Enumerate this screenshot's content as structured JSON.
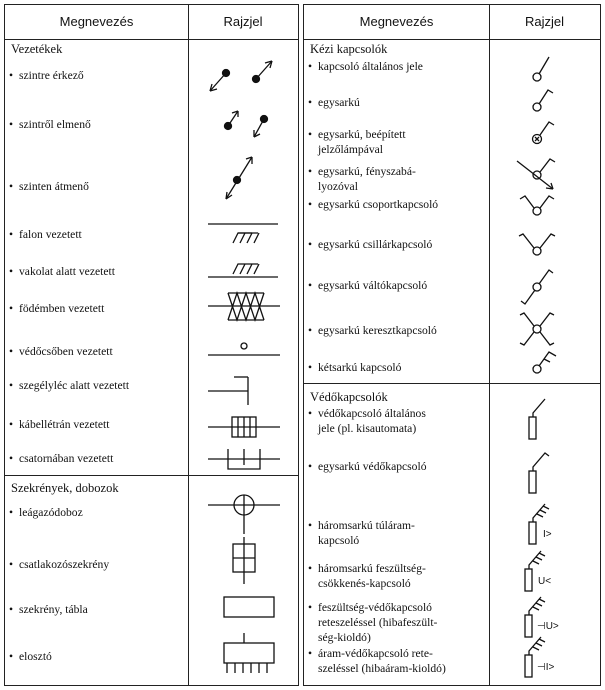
{
  "left": {
    "header": {
      "name": "Megnevezés",
      "symbol": "Rajzjel"
    },
    "sections": [
      {
        "title": "Vezetékek",
        "items": [
          {
            "label": "szintre érkező"
          },
          {
            "label": "szintről elmenő"
          },
          {
            "label": "szinten átmenő"
          },
          {
            "label": "falon vezetett"
          },
          {
            "label": "vakolat alatt vezetett"
          },
          {
            "label": "födémben vezetett"
          },
          {
            "label": "védőcsőben vezetett"
          },
          {
            "label": "szegélyléc alatt vezetett"
          },
          {
            "label": "kábellétrán vezetett"
          },
          {
            "label": "csatornában vezetett"
          }
        ]
      },
      {
        "title": "Szekrények, dobozok",
        "items": [
          {
            "label": "leágazódoboz"
          },
          {
            "label": "csatlakozószekrény"
          },
          {
            "label": "szekrény, tábla"
          },
          {
            "label": "elosztó"
          }
        ]
      }
    ]
  },
  "right": {
    "header": {
      "name": "Megnevezés",
      "symbol": "Rajzjel"
    },
    "sections": [
      {
        "title": "Kézi kapcsolók",
        "items": [
          {
            "label": "kapcsoló általános jele"
          },
          {
            "label": "egysarkú"
          },
          {
            "label": "egysarkú, beépített",
            "label2": "jelzőlámpával"
          },
          {
            "label": "egysarkú,  fényszabá-",
            "label2": "lyozóval"
          },
          {
            "label": "egysarkú csoportkapcsoló"
          },
          {
            "label": "egysarkú csillárkapcsoló"
          },
          {
            "label": "egysarkú váltókapcsoló"
          },
          {
            "label": "egysarkú keresztkapcsoló"
          },
          {
            "label": "kétsarkú kapcsoló"
          }
        ]
      },
      {
        "title": "Védőkapcsolók",
        "items": [
          {
            "label": "védőkapcsoló általános",
            "label2": "jele (pl. kisautomata)"
          },
          {
            "label": "egysarkú védőkapcsoló"
          },
          {
            "label": "háromsarkú túláram-",
            "label2": "kapcsoló",
            "symtext": "I>"
          },
          {
            "label": "háromsarkú feszültség-",
            "label2": "csökkenés-kapcsoló",
            "symtext": "U<"
          },
          {
            "label": "feszültség-védőkapcsoló",
            "label2": "reteszeléssel (hibafeszült-",
            "label3": "ség-kioldó)",
            "symtext": "⊣U>"
          },
          {
            "label": "áram-védőkapcsoló rete-",
            "label2": "szeléssel (hibaáram-kioldó)",
            "symtext": "⊣I>"
          }
        ]
      }
    ]
  }
}
